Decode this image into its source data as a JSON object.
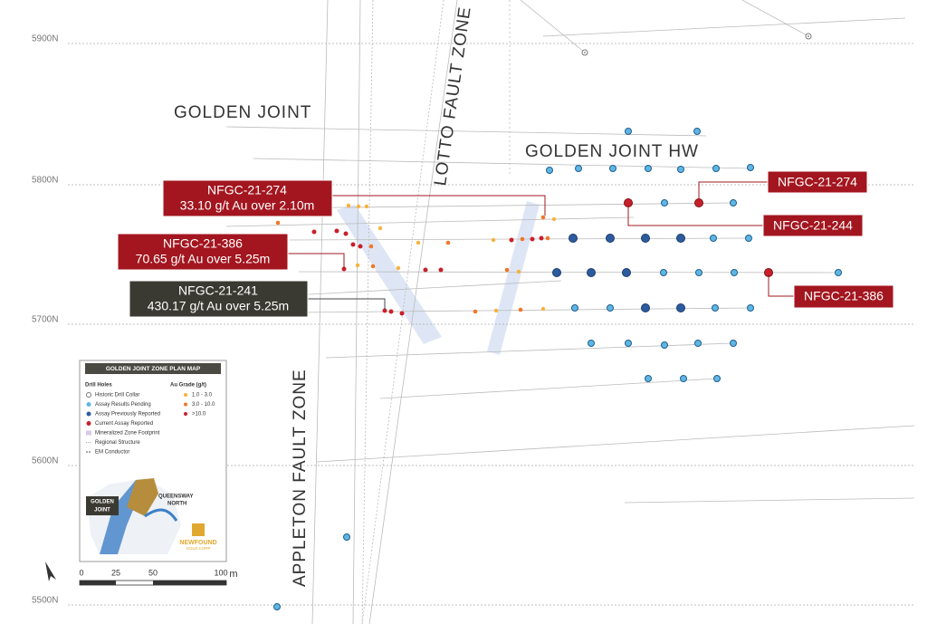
{
  "map": {
    "northings": [
      "5900N",
      "5800N",
      "5700N",
      "5600N",
      "5500N"
    ],
    "zones": {
      "golden_joint": "GOLDEN JOINT",
      "lotto": "LOTTO FAULT ZONE",
      "golden_joint_hw": "GOLDEN JOINT HW",
      "appleton": "APPLETON FAULT ZONE"
    },
    "callouts": [
      {
        "hole": "NFGC-21-274",
        "result": "33.10 g/t Au over 2.10m"
      },
      {
        "hole": "NFGC-21-386",
        "result": "70.65 g/t Au over 5.25m"
      },
      {
        "hole": "NFGC-21-241",
        "result": "430.17 g/t Au over 5.25m"
      },
      {
        "hole": "NFGC-21-274"
      },
      {
        "hole": "NFGC-21-244"
      },
      {
        "hole": "NFGC-21-386"
      }
    ],
    "legend": {
      "title": "GOLDEN JOINT ZONE PLAN MAP",
      "drill_holes_heading": "Drill Holes",
      "items": [
        "Historic Drill Collar",
        "Assay Results Pending",
        "Assay Previously Reported",
        "Current Assay Reported",
        "Mineralized Zone Footprint",
        "Regional Structure",
        "EM Conductor"
      ],
      "grade_heading": "Au Grade (g/t)",
      "grades": [
        "1.0 - 3.0",
        "3.0 - 10.0",
        ">10.0"
      ],
      "inset": {
        "golden_joint": [
          "GOLDEN",
          "JOINT"
        ],
        "queensway": [
          "QUEENSWAY",
          "NORTH"
        ],
        "company": [
          "NEWFOUND",
          "GOLD CORP"
        ]
      }
    },
    "scale_bar": {
      "labels": [
        "0",
        "25",
        "50",
        "100"
      ],
      "unit": "m"
    }
  }
}
